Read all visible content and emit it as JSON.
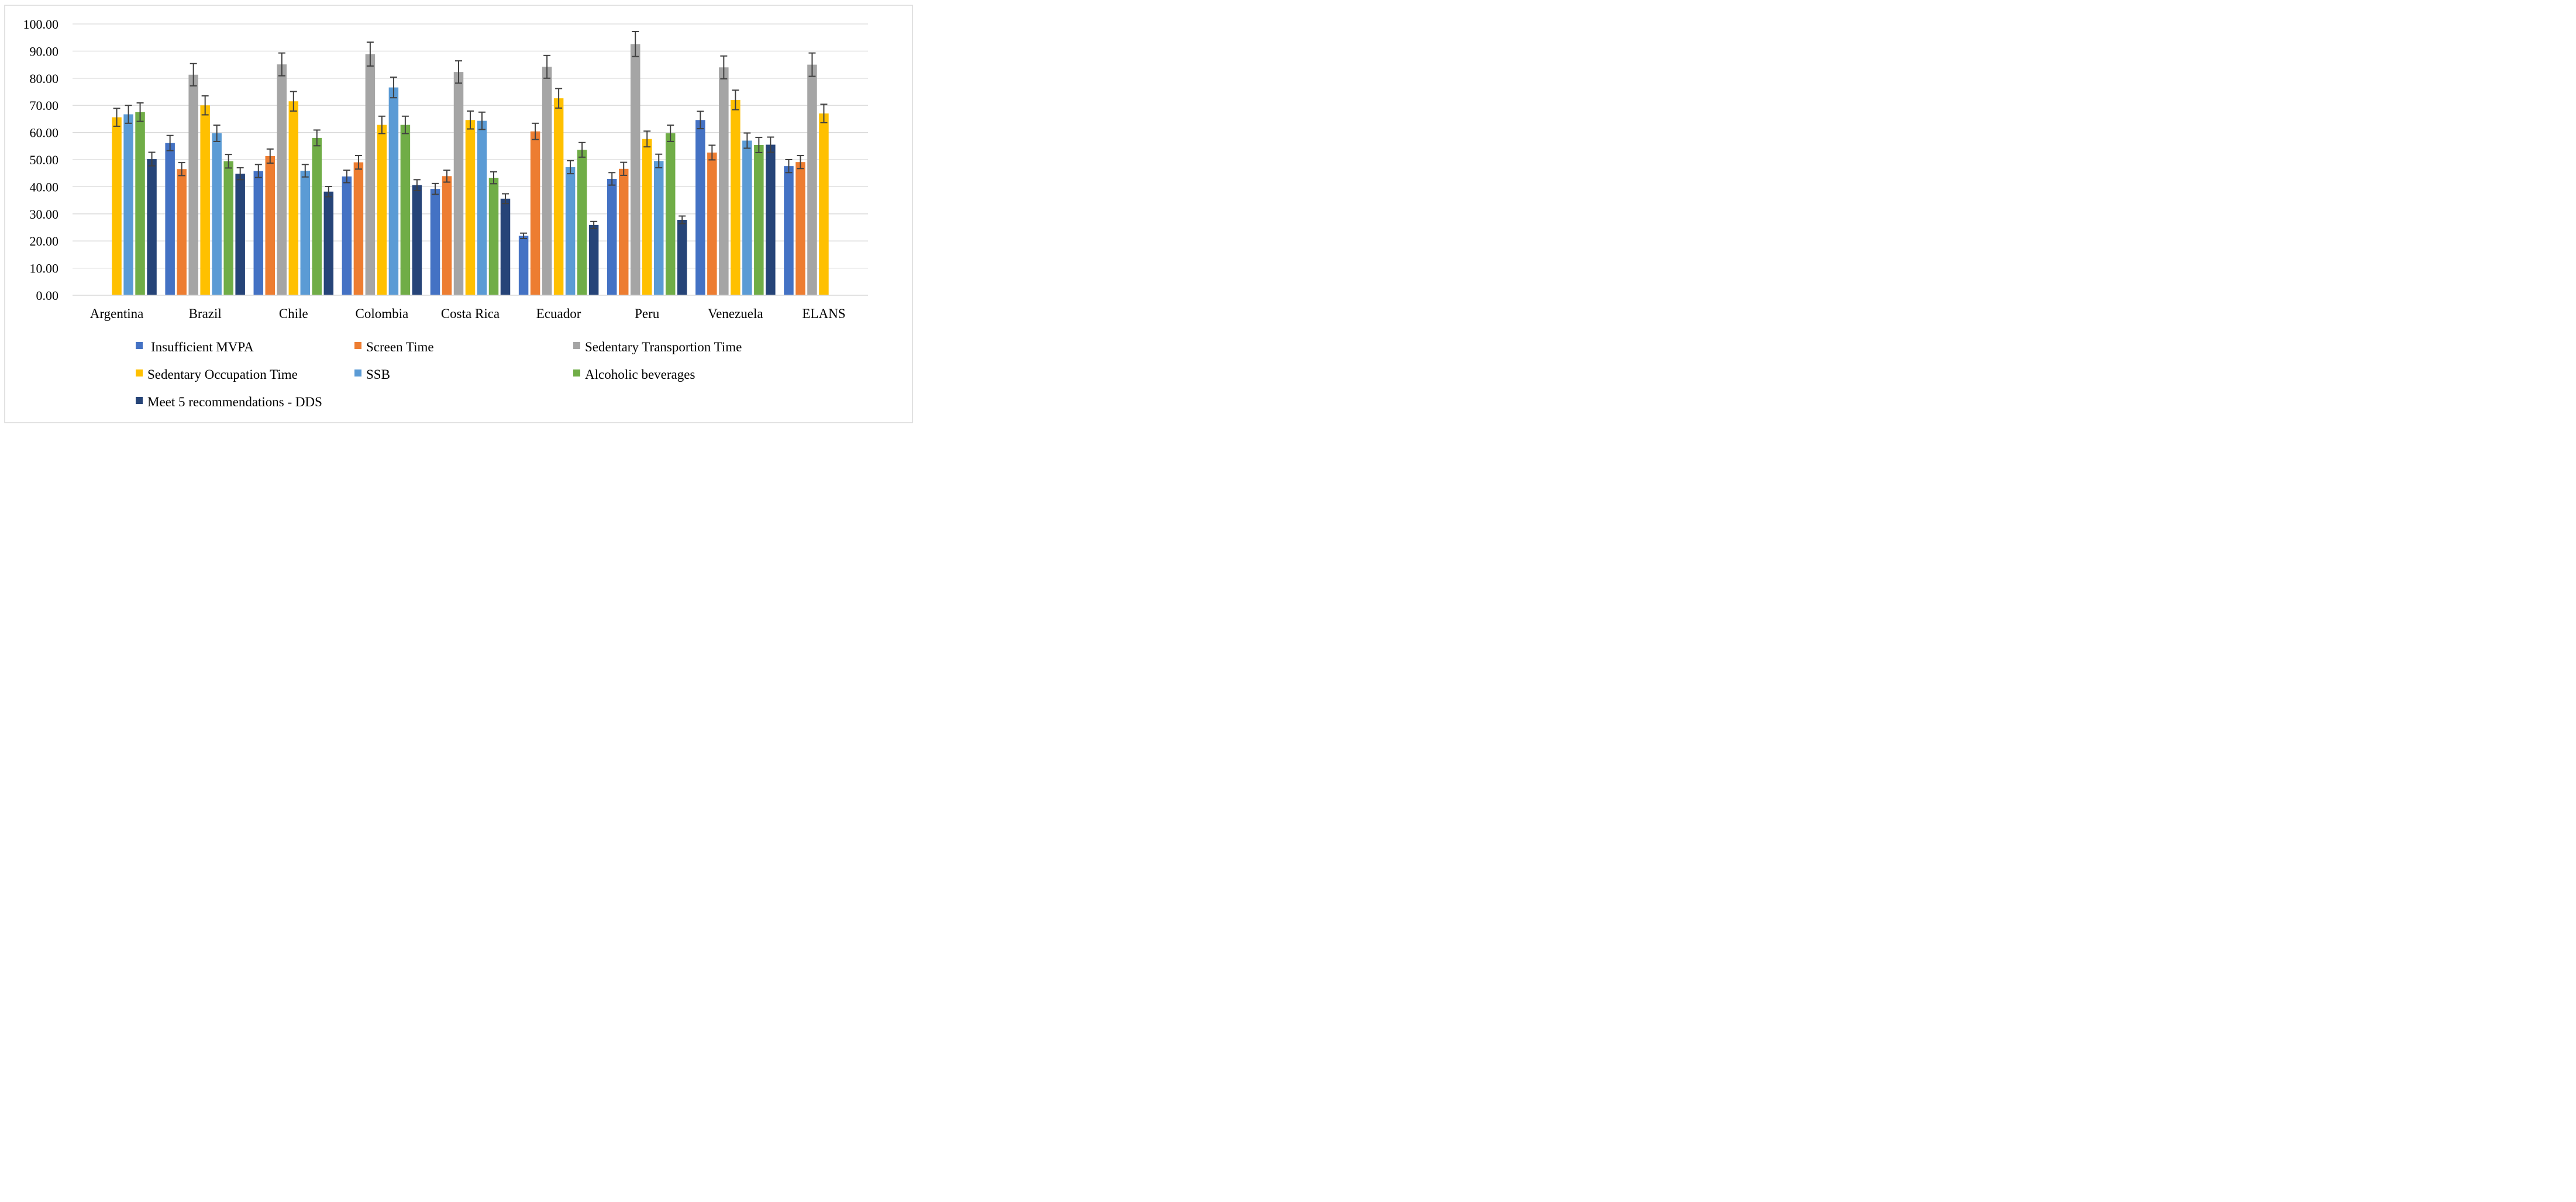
{
  "chart_data": {
    "type": "bar",
    "title": "",
    "xlabel": "",
    "ylabel": "",
    "ylim": [
      0,
      100
    ],
    "yticks": [
      "0.00",
      "10.00",
      "20.00",
      "30.00",
      "40.00",
      "50.00",
      "60.00",
      "70.00",
      "80.00",
      "90.00",
      "100.00"
    ],
    "grid": true,
    "legend_position": "bottom",
    "categories": [
      "Argentina",
      "Brazil",
      "Chile",
      "Colombia",
      "Costa Rica",
      "Ecuador",
      "Peru",
      "Venezuela",
      "ELANS"
    ],
    "series": [
      {
        "name": "Insufficient MVPA",
        "color": "#4472C4",
        "values": [
          null,
          56.1,
          45.8,
          43.8,
          39.2,
          21.9,
          42.9,
          64.6,
          47.6
        ],
        "error": [
          null,
          2.8,
          2.4,
          2.3,
          2.0,
          1.0,
          2.3,
          3.2,
          2.4
        ]
      },
      {
        "name": "Screen Time",
        "color": "#ED7D31",
        "values": [
          null,
          46.5,
          51.3,
          49.0,
          43.9,
          60.4,
          46.6,
          52.6,
          49.1
        ],
        "error": [
          null,
          2.4,
          2.6,
          2.5,
          2.2,
          3.0,
          2.4,
          2.7,
          2.4
        ]
      },
      {
        "name": "Sedentary Transportion Time",
        "color": "#A5A5A5",
        "values": [
          null,
          81.3,
          85.1,
          88.9,
          82.3,
          84.2,
          92.6,
          84.0,
          85.0
        ],
        "error": [
          null,
          4.1,
          4.2,
          4.4,
          4.1,
          4.2,
          4.6,
          4.2,
          4.3
        ]
      },
      {
        "name": "Sedentary Occupation Time",
        "color": "#FFC000",
        "values": [
          65.6,
          70.0,
          71.5,
          62.8,
          64.6,
          72.6,
          57.6,
          72.0,
          67.0
        ],
        "error": [
          3.3,
          3.5,
          3.6,
          3.2,
          3.3,
          3.6,
          2.9,
          3.6,
          3.4
        ]
      },
      {
        "name": "SSB",
        "color": "#5B9BD5",
        "values": [
          66.7,
          59.7,
          45.9,
          76.6,
          64.3,
          47.2,
          49.5,
          57.0,
          null
        ],
        "error": [
          3.3,
          3.0,
          2.3,
          3.8,
          3.2,
          2.4,
          2.5,
          2.8,
          null
        ]
      },
      {
        "name": "Alcoholic beverages",
        "color": "#70AD47",
        "values": [
          67.5,
          49.4,
          58.0,
          62.8,
          43.3,
          53.6,
          59.7,
          55.4,
          null
        ],
        "error": [
          3.4,
          2.5,
          2.9,
          3.2,
          2.2,
          2.7,
          3.0,
          2.8,
          null
        ]
      },
      {
        "name": "Meet 5 recommendations - DDS",
        "color": "#264478",
        "values": [
          50.2,
          44.8,
          38.2,
          40.6,
          35.6,
          25.9,
          27.8,
          55.5,
          null
        ],
        "error": [
          2.5,
          2.2,
          1.9,
          2.0,
          1.8,
          1.3,
          1.4,
          2.8,
          null
        ]
      }
    ]
  }
}
